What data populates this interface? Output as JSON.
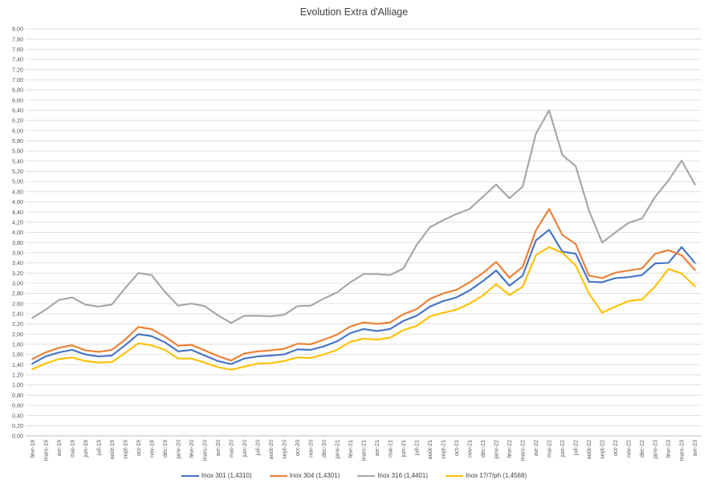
{
  "chart_data": {
    "type": "line",
    "title": "Evolution Extra d'Alliage",
    "xlabel": "",
    "ylabel": "",
    "ylim": [
      0,
      8
    ],
    "ytick_step": 0.2,
    "ytick_labels": [
      "0,00",
      "0,20",
      "0,40",
      "0,60",
      "0,80",
      "1,00",
      "1,20",
      "1,40",
      "1,60",
      "1,80",
      "2,00",
      "2,20",
      "2,40",
      "2,60",
      "2,80",
      "3,00",
      "3,20",
      "3,40",
      "3,60",
      "3,80",
      "4,00",
      "4,20",
      "4,40",
      "4,60",
      "4,80",
      "5,00",
      "5,20",
      "5,40",
      "5,60",
      "5,80",
      "6,00",
      "6,20",
      "6,40",
      "6,60",
      "6,80",
      "7,00",
      "7,20",
      "7,40",
      "7,60",
      "7,80",
      "8,00"
    ],
    "grid": true,
    "legend_position": "bottom",
    "categories": [
      "févr-19",
      "mars-19",
      "avr-19",
      "mai-19",
      "juin-19",
      "juil-19",
      "août-19",
      "sept-19",
      "oct-19",
      "nov-19",
      "déc-19",
      "janv-20",
      "févr-20",
      "mars-20",
      "avr-20",
      "mai-20",
      "juin-20",
      "juil-20",
      "août-20",
      "sept-20",
      "oct-20",
      "nov-20",
      "déc-20",
      "janv-21",
      "févr-21",
      "mars-21",
      "avr-21",
      "mai-21",
      "juin-21",
      "juil-21",
      "août-21",
      "sept-21",
      "oct-21",
      "nov-21",
      "déc-21",
      "janv-22",
      "févr-22",
      "mars-22",
      "avr-22",
      "mai-22",
      "juin-22",
      "juil-22",
      "août-22",
      "sept-22",
      "oct-22",
      "nov-22",
      "déc-22",
      "janv-23",
      "févr-23",
      "mars-23",
      "avr-23"
    ],
    "series": [
      {
        "name": "Inox 301 (1,4310)",
        "color": "#4472c4",
        "values": [
          1.42,
          1.56,
          1.64,
          1.69,
          1.6,
          1.56,
          1.58,
          1.78,
          2.0,
          1.96,
          1.84,
          1.66,
          1.69,
          1.58,
          1.47,
          1.41,
          1.52,
          1.56,
          1.58,
          1.6,
          1.7,
          1.69,
          1.76,
          1.86,
          2.02,
          2.1,
          2.06,
          2.1,
          2.26,
          2.36,
          2.54,
          2.65,
          2.72,
          2.86,
          3.04,
          3.25,
          2.95,
          3.15,
          3.84,
          4.05,
          3.62,
          3.58,
          3.03,
          3.02,
          3.1,
          3.12,
          3.16,
          3.39,
          3.4,
          3.71,
          3.4
        ]
      },
      {
        "name": "Inox 304 (1,4301)",
        "color": "#ed7d31",
        "values": [
          1.51,
          1.64,
          1.73,
          1.78,
          1.68,
          1.65,
          1.69,
          1.89,
          2.14,
          2.1,
          1.95,
          1.77,
          1.79,
          1.68,
          1.57,
          1.48,
          1.62,
          1.66,
          1.68,
          1.71,
          1.81,
          1.8,
          1.89,
          1.99,
          2.15,
          2.23,
          2.2,
          2.23,
          2.39,
          2.49,
          2.69,
          2.8,
          2.87,
          3.02,
          3.2,
          3.42,
          3.11,
          3.32,
          4.04,
          4.46,
          3.95,
          3.77,
          3.15,
          3.1,
          3.21,
          3.25,
          3.29,
          3.58,
          3.65,
          3.55,
          3.26
        ]
      },
      {
        "name": "Inox 316 (1,4401)",
        "color": "#a5a5a5",
        "values": [
          2.32,
          2.48,
          2.67,
          2.72,
          2.58,
          2.54,
          2.58,
          2.9,
          3.2,
          3.16,
          2.83,
          2.56,
          2.6,
          2.55,
          2.37,
          2.22,
          2.36,
          2.36,
          2.35,
          2.38,
          2.55,
          2.56,
          2.7,
          2.82,
          3.02,
          3.18,
          3.18,
          3.16,
          3.29,
          3.75,
          4.1,
          4.24,
          4.36,
          4.46,
          4.7,
          4.94,
          4.67,
          4.9,
          5.94,
          6.4,
          5.52,
          5.3,
          4.43,
          3.8,
          4.0,
          4.19,
          4.27,
          4.7,
          5.02,
          5.41,
          4.94
        ]
      },
      {
        "name": "Inox 17/7/ph (1,4568)",
        "color": "#ffc000",
        "values": [
          1.31,
          1.42,
          1.51,
          1.54,
          1.47,
          1.44,
          1.45,
          1.63,
          1.82,
          1.78,
          1.69,
          1.52,
          1.52,
          1.44,
          1.35,
          1.3,
          1.36,
          1.42,
          1.43,
          1.47,
          1.54,
          1.53,
          1.6,
          1.69,
          1.85,
          1.91,
          1.89,
          1.93,
          2.08,
          2.16,
          2.35,
          2.42,
          2.48,
          2.6,
          2.76,
          2.98,
          2.77,
          2.93,
          3.55,
          3.71,
          3.6,
          3.35,
          2.8,
          2.42,
          2.54,
          2.65,
          2.68,
          2.94,
          3.28,
          3.19,
          2.94
        ]
      }
    ]
  }
}
